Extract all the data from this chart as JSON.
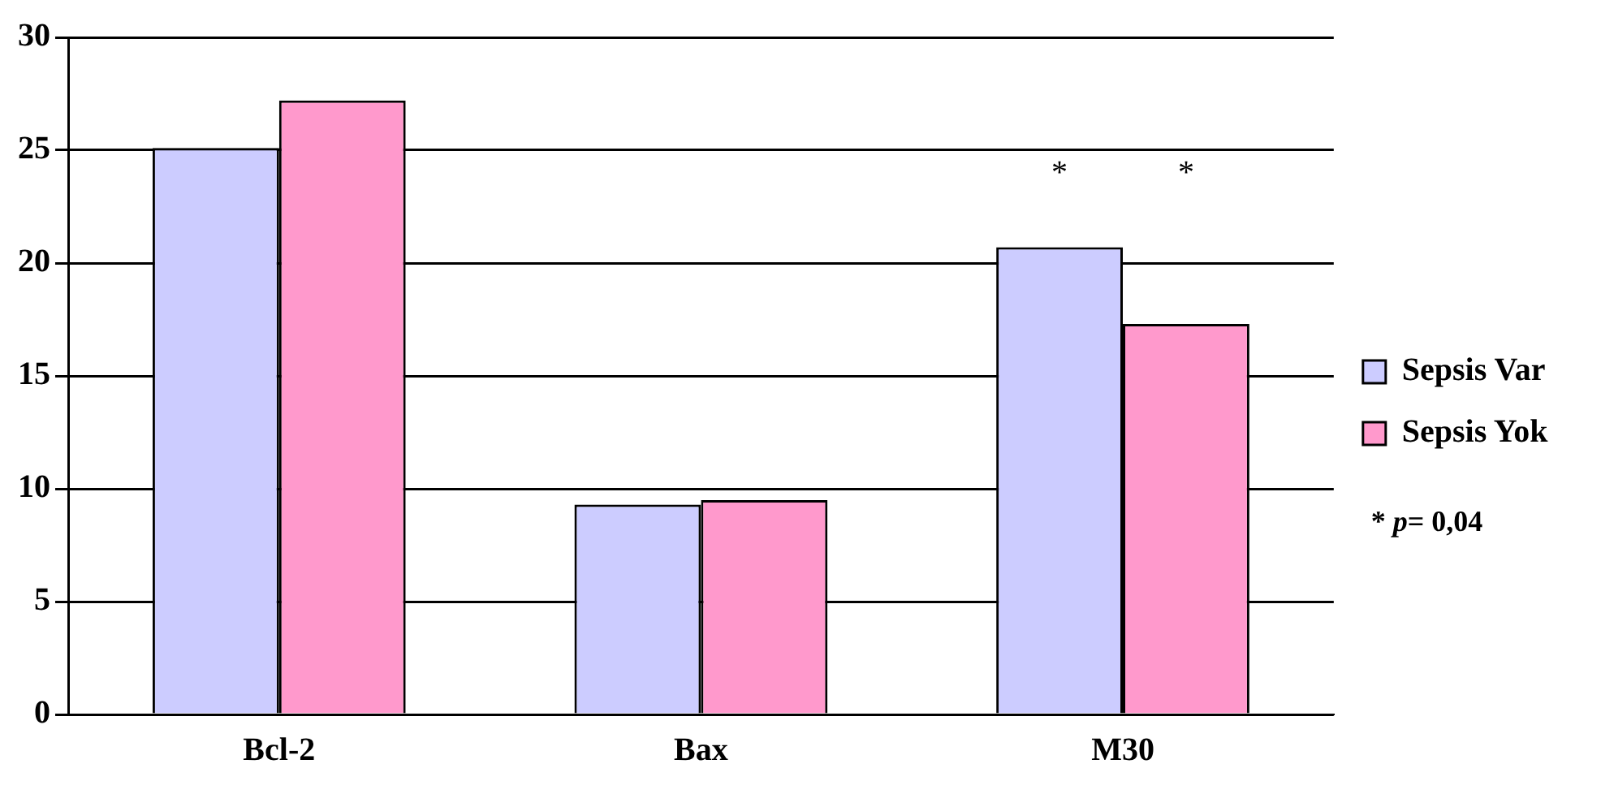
{
  "chart_data": {
    "type": "bar",
    "categories": [
      "Bcl-2",
      "Bax",
      "M30"
    ],
    "series": [
      {
        "name": "Sepsis Var",
        "color": "#ccccff",
        "values": [
          25.1,
          9.3,
          20.7
        ]
      },
      {
        "name": "Sepsis Yok",
        "color": "#ff99cc",
        "values": [
          27.2,
          9.5,
          17.3
        ]
      }
    ],
    "ylim": [
      0,
      30
    ],
    "yticks": [
      0,
      5,
      10,
      15,
      20,
      25,
      30
    ],
    "grid": "y",
    "legend": "right",
    "annotations": [
      "*",
      "*",
      "* p= 0,04"
    ]
  }
}
